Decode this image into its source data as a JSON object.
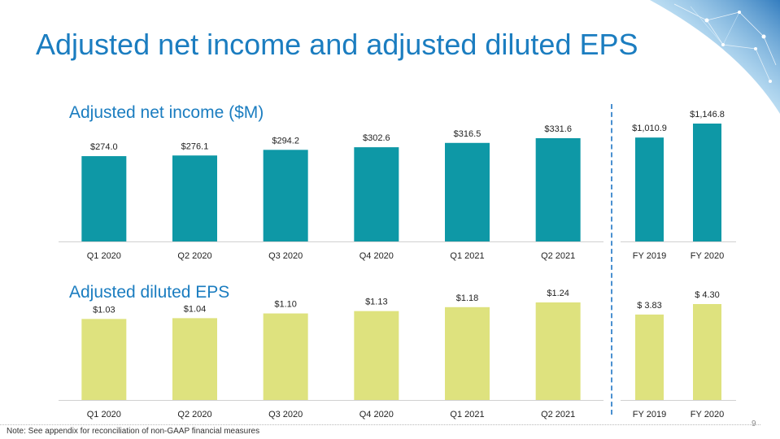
{
  "title": "Adjusted net income and adjusted diluted EPS",
  "footnote": "Note: See appendix for reconciliation of non-GAAP financial measures",
  "page_number": "9",
  "colors": {
    "title": "#1b7dc0",
    "income_bar": "#0e98a6",
    "eps_bar": "#dee27e",
    "divider": "#4a90d0"
  },
  "decoration_icon": "network-globe-graphic",
  "chart_data": [
    {
      "type": "bar",
      "title": "Adjusted net income ($M)",
      "categories": [
        "Q1 2020",
        "Q2 2020",
        "Q3 2020",
        "Q4 2020",
        "Q1 2021",
        "Q2 2021"
      ],
      "values": [
        274.0,
        276.1,
        294.2,
        302.6,
        316.5,
        331.6
      ],
      "labels": [
        "$274.0",
        "$276.1",
        "$294.2",
        "$302.6",
        "$316.5",
        "$331.6"
      ]
    },
    {
      "type": "bar",
      "title": "",
      "categories": [
        "FY 2019",
        "FY 2020"
      ],
      "values": [
        1010.9,
        1146.8
      ],
      "labels": [
        "$1,010.9",
        "$1,146.8"
      ]
    },
    {
      "type": "bar",
      "title": "Adjusted diluted EPS",
      "categories": [
        "Q1 2020",
        "Q2 2020",
        "Q3 2020",
        "Q4 2020",
        "Q1 2021",
        "Q2 2021"
      ],
      "values": [
        1.03,
        1.04,
        1.1,
        1.13,
        1.18,
        1.24
      ],
      "labels": [
        "$1.03",
        "$1.04",
        "$1.10",
        "$1.13",
        "$1.18",
        "$1.24"
      ]
    },
    {
      "type": "bar",
      "title": "",
      "categories": [
        "FY 2019",
        "FY 2020"
      ],
      "values": [
        3.83,
        4.3
      ],
      "labels": [
        "$ 3.83",
        "$ 4.30"
      ]
    }
  ]
}
